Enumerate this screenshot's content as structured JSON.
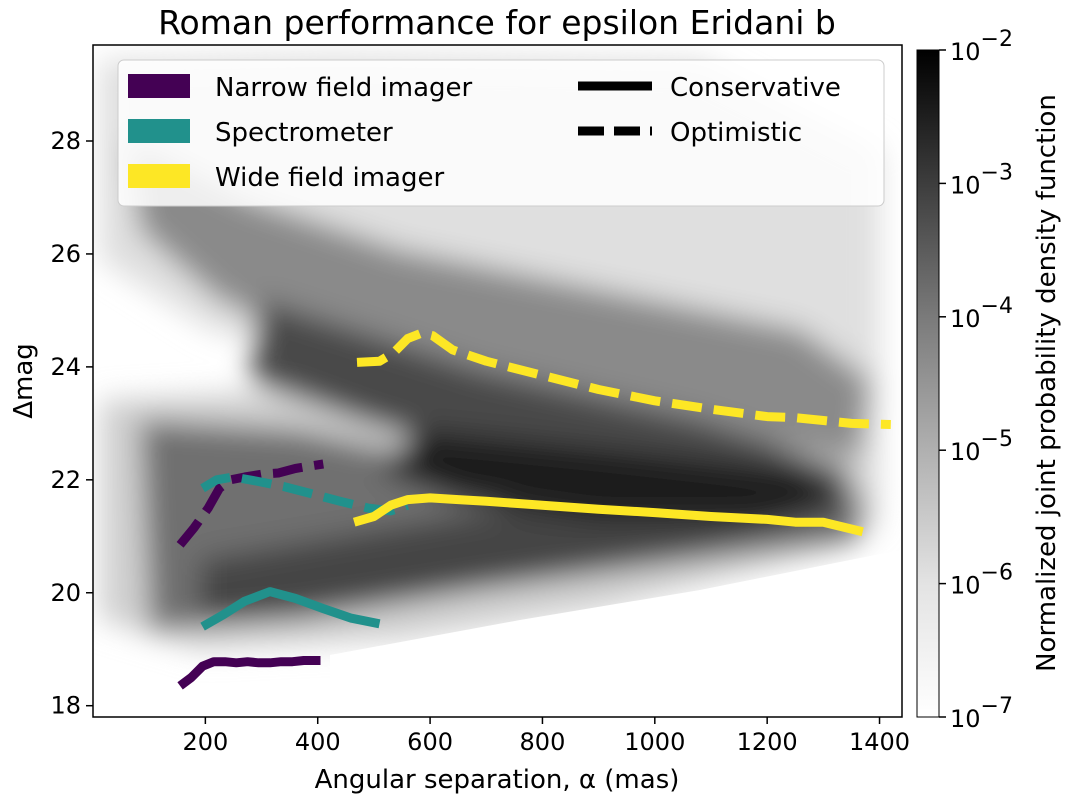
{
  "chart_data": {
    "type": "line",
    "title": "Roman performance for epsilon Eridani b",
    "xlabel": "Angular separation, α (mas)",
    "ylabel": "Δmag",
    "xlim": [
      0,
      1440
    ],
    "ylim": [
      17.8,
      29.7
    ],
    "x_ticks": [
      200,
      400,
      600,
      800,
      1000,
      1200,
      1400
    ],
    "x_tick_labels": [
      "200",
      "400",
      "600",
      "800",
      "1000",
      "1200",
      "1400"
    ],
    "y_ticks": [
      18,
      20,
      22,
      24,
      26,
      28
    ],
    "y_tick_labels": [
      "18",
      "20",
      "22",
      "24",
      "26",
      "28"
    ],
    "grid": false,
    "legend_position": "top",
    "legend": {
      "instruments": [
        {
          "label": "Narrow field imager",
          "color": "#440154"
        },
        {
          "label": "Spectrometer",
          "color": "#21918c"
        },
        {
          "label": "Wide field imager",
          "color": "#fde725"
        }
      ],
      "scenarios": [
        {
          "label": "Conservative",
          "style": "solid"
        },
        {
          "label": "Optimistic",
          "style": "dashed"
        }
      ]
    },
    "colorbar": {
      "label": "Normalized joint probability density function",
      "scale": "log",
      "range": [
        1e-07,
        0.01
      ],
      "tick_bases": [
        "10",
        "10",
        "10",
        "10",
        "10",
        "10"
      ],
      "tick_exponents": [
        "−2",
        "−3",
        "−4",
        "−5",
        "−6",
        "−7"
      ],
      "colormap": "Greys"
    },
    "series": [
      {
        "instrument": "Narrow field imager",
        "scenario": "Conservative",
        "color": "#440154",
        "x": [
          155,
          175,
          195,
          215,
          235,
          255,
          275,
          295,
          315,
          335,
          355,
          375,
          395,
          405
        ],
        "y": [
          18.35,
          18.5,
          18.7,
          18.78,
          18.78,
          18.76,
          18.78,
          18.76,
          18.76,
          18.78,
          18.78,
          18.8,
          18.8,
          18.8
        ]
      },
      {
        "instrument": "Narrow field imager",
        "scenario": "Optimistic",
        "color": "#440154",
        "x": [
          155,
          180,
          205,
          225,
          245,
          270,
          300,
          330,
          360,
          390,
          410
        ],
        "y": [
          20.85,
          21.15,
          21.5,
          21.85,
          22.0,
          22.05,
          22.1,
          22.12,
          22.2,
          22.25,
          22.28
        ]
      },
      {
        "instrument": "Spectrometer",
        "scenario": "Conservative",
        "color": "#21918c",
        "x": [
          195,
          230,
          270,
          315,
          360,
          410,
          460,
          510
        ],
        "y": [
          19.4,
          19.6,
          19.85,
          20.02,
          19.9,
          19.72,
          19.55,
          19.45
        ]
      },
      {
        "instrument": "Spectrometer",
        "scenario": "Optimistic",
        "color": "#21918c",
        "x": [
          195,
          220,
          250,
          290,
          340,
          390,
          440,
          490,
          530,
          560
        ],
        "y": [
          21.85,
          22.0,
          22.05,
          21.98,
          21.88,
          21.75,
          21.62,
          21.5,
          21.45,
          21.55
        ]
      },
      {
        "instrument": "Wide field imager",
        "scenario": "Conservative",
        "color": "#fde725",
        "x": [
          465,
          500,
          530,
          560,
          600,
          650,
          700,
          800,
          900,
          1000,
          1100,
          1200,
          1250,
          1300,
          1370
        ],
        "y": [
          21.25,
          21.35,
          21.55,
          21.65,
          21.68,
          21.65,
          21.62,
          21.55,
          21.48,
          21.42,
          21.35,
          21.3,
          21.25,
          21.25,
          21.08
        ]
      },
      {
        "instrument": "Wide field imager",
        "scenario": "Optimistic",
        "color": "#fde725",
        "x": [
          470,
          510,
          535,
          560,
          585,
          605,
          640,
          700,
          800,
          900,
          1000,
          1100,
          1200,
          1250,
          1300,
          1350,
          1420
        ],
        "y": [
          24.08,
          24.1,
          24.25,
          24.5,
          24.6,
          24.55,
          24.3,
          24.1,
          23.85,
          23.6,
          23.4,
          23.25,
          23.12,
          23.1,
          23.05,
          23.0,
          22.98
        ]
      }
    ]
  }
}
